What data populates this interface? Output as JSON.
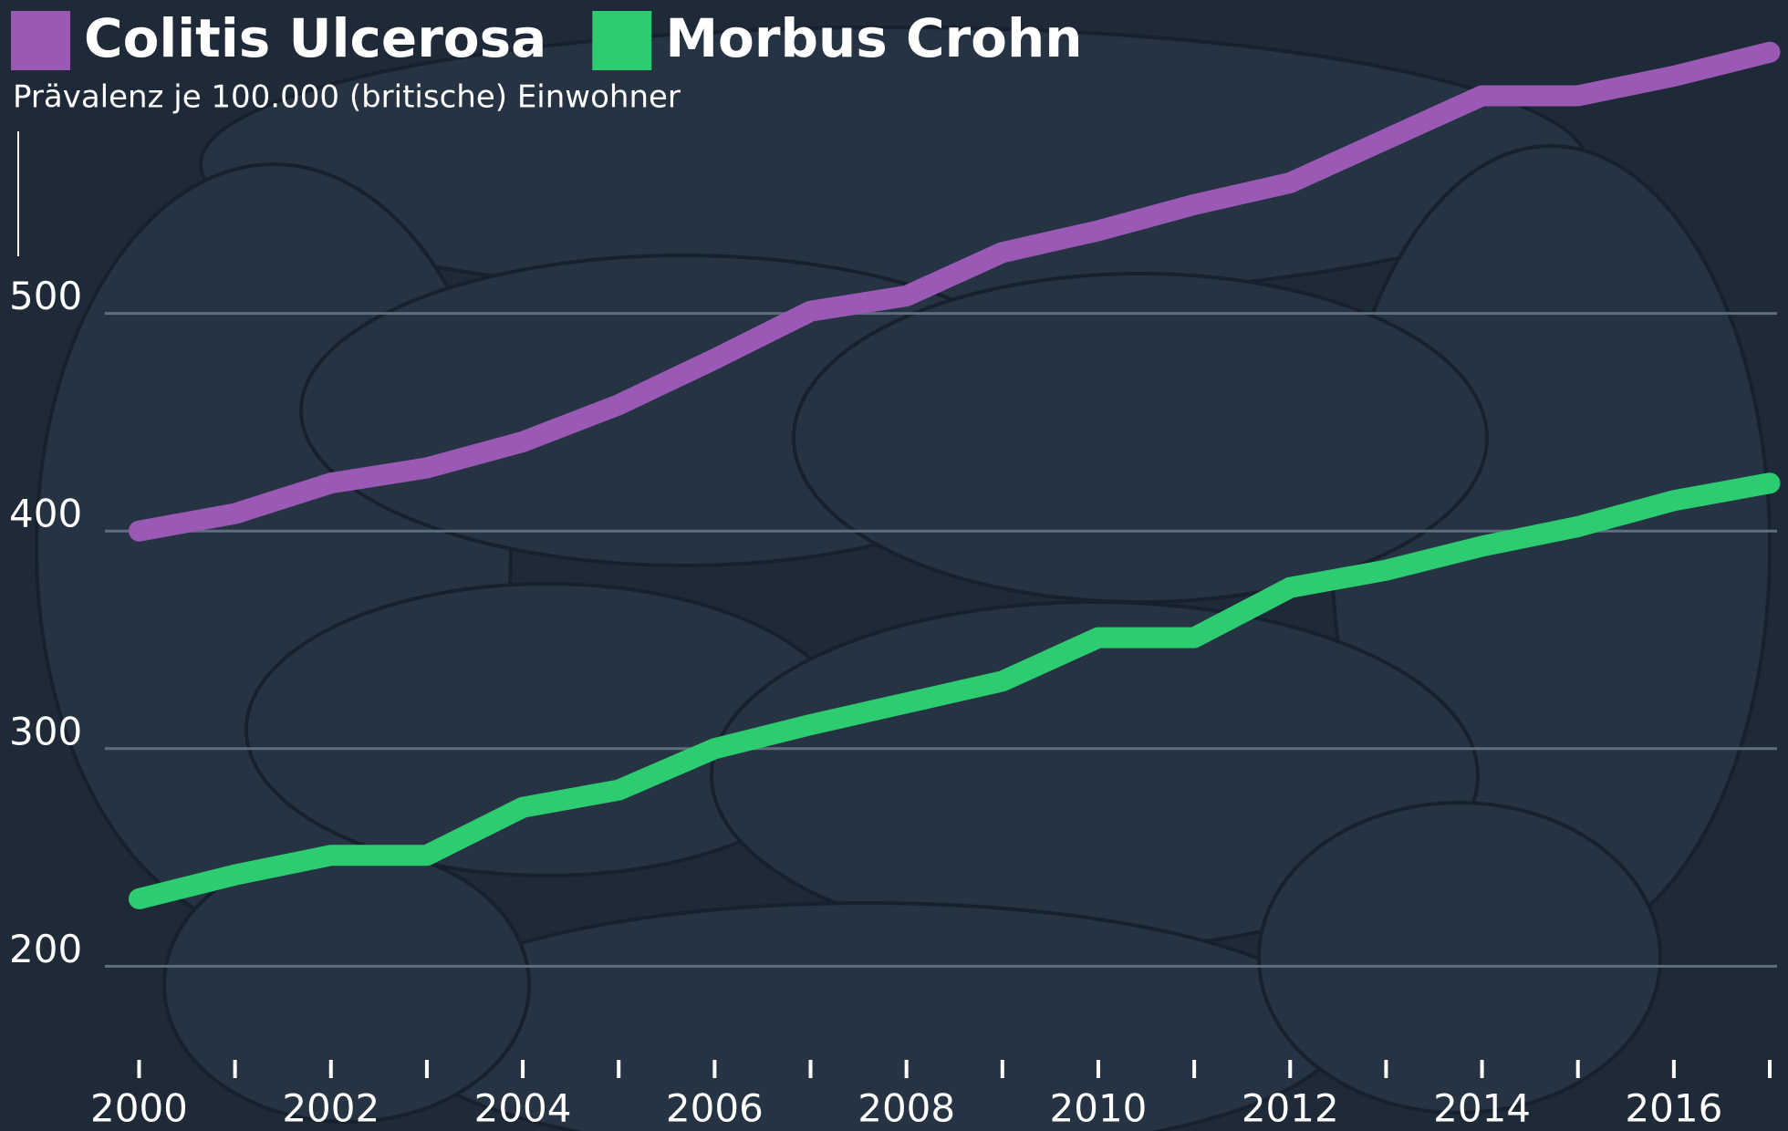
{
  "chart_data": {
    "type": "line",
    "subtitle": "Prävalenz je 100.000 (britische) Einwohner",
    "x": [
      2000,
      2001,
      2002,
      2003,
      2004,
      2005,
      2006,
      2007,
      2008,
      2009,
      2010,
      2011,
      2012,
      2013,
      2014,
      2015,
      2016,
      2017
    ],
    "series": [
      {
        "name": "Colitis Ulcerosa",
        "color": "#9b59b6",
        "values": [
          400,
          408,
          422,
          429,
          441,
          458,
          479,
          501,
          508,
          528,
          538,
          550,
          560,
          580,
          600,
          600,
          609,
          620
        ]
      },
      {
        "name": "Morbus Crohn",
        "color": "#2ecc71",
        "values": [
          231,
          242,
          251,
          251,
          273,
          281,
          300,
          311,
          321,
          331,
          351,
          351,
          374,
          382,
          393,
          402,
          414,
          422
        ]
      }
    ],
    "xlim": [
      1998.55,
      2017.19
    ],
    "xticks": [
      2000,
      2002,
      2004,
      2006,
      2008,
      2010,
      2012,
      2014,
      2016
    ],
    "xminorticks": [
      2001,
      2003,
      2005,
      2007,
      2009,
      2011,
      2013,
      2015,
      2017
    ],
    "ylim": [
      157,
      644
    ],
    "yticks": [
      200,
      300,
      400,
      500
    ],
    "grid": true
  }
}
